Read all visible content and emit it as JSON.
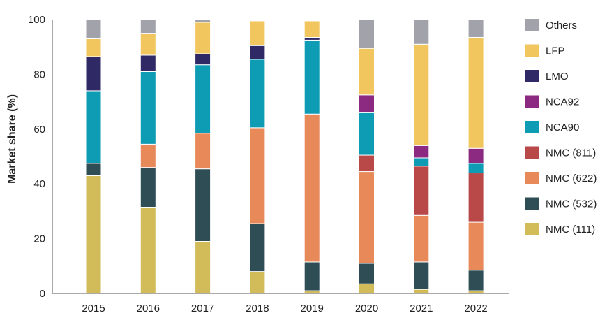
{
  "chart_data": {
    "type": "bar",
    "stacked": true,
    "categories": [
      "2015",
      "2016",
      "2017",
      "2018",
      "2019",
      "2020",
      "2021",
      "2022"
    ],
    "ylabel": "Market share (%)",
    "xlabel": "",
    "ylim": [
      0,
      100
    ],
    "yticks": [
      0,
      20,
      40,
      60,
      80,
      100
    ],
    "grid": false,
    "legend_position": "right",
    "series": [
      {
        "name": "NMC (111)",
        "color": "#d2bc5a",
        "values": [
          43,
          31.5,
          19,
          8,
          1,
          3.5,
          1.5,
          1
        ]
      },
      {
        "name": "NMC (532)",
        "color": "#2f4d55",
        "values": [
          4.5,
          14.5,
          26.5,
          17.5,
          10.5,
          7.5,
          10,
          7.5
        ]
      },
      {
        "name": "NMC (622)",
        "color": "#e8895a",
        "values": [
          0,
          8.5,
          13,
          35,
          54,
          33.5,
          17,
          17.5
        ]
      },
      {
        "name": "NMC (811)",
        "color": "#b94848",
        "values": [
          0,
          0,
          0,
          0,
          0,
          6,
          18,
          18
        ]
      },
      {
        "name": "NCA90",
        "color": "#0e9bb4",
        "values": [
          26.5,
          26.5,
          25,
          25,
          27,
          15.5,
          3,
          3.5
        ]
      },
      {
        "name": "NCA92",
        "color": "#8c2a82",
        "values": [
          0,
          0,
          0,
          0,
          0,
          6.5,
          4.5,
          5.5
        ]
      },
      {
        "name": "LMO",
        "color": "#2f2966",
        "values": [
          12.5,
          6,
          4,
          5,
          1,
          0,
          0,
          0
        ]
      },
      {
        "name": "LFP",
        "color": "#f2c65f",
        "values": [
          6.5,
          8,
          11.5,
          9,
          6,
          17,
          37,
          40.5
        ]
      },
      {
        "name": "Others",
        "color": "#a2a2ab",
        "values": [
          7,
          5,
          1,
          0,
          0,
          10.5,
          9,
          6.5
        ]
      }
    ],
    "legend_order": [
      "Others",
      "LFP",
      "LMO",
      "NCA92",
      "NCA90",
      "NMC (811)",
      "NMC (622)",
      "NMC (532)",
      "NMC (111)"
    ]
  }
}
